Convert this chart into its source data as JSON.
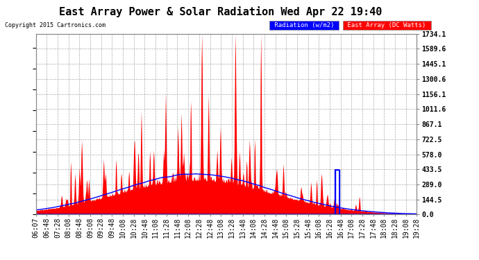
{
  "title": "East Array Power & Solar Radiation Wed Apr 22 19:40",
  "copyright": "Copyright 2015 Cartronics.com",
  "y_ticks": [
    0.0,
    144.5,
    289.0,
    433.5,
    578.0,
    722.5,
    867.1,
    1011.6,
    1156.1,
    1300.6,
    1445.1,
    1589.6,
    1734.1
  ],
  "y_max": 1734.1,
  "y_min": 0.0,
  "x_labels": [
    "06:07",
    "06:48",
    "07:28",
    "08:08",
    "08:48",
    "09:08",
    "09:28",
    "09:48",
    "10:08",
    "10:28",
    "10:48",
    "11:08",
    "11:28",
    "11:48",
    "12:08",
    "12:28",
    "12:48",
    "13:08",
    "13:28",
    "13:48",
    "14:08",
    "14:28",
    "14:48",
    "15:08",
    "15:28",
    "15:48",
    "16:08",
    "16:28",
    "16:48",
    "17:08",
    "17:28",
    "17:48",
    "18:08",
    "18:28",
    "19:08",
    "19:28"
  ],
  "bg_color": "#ffffff",
  "plot_bg": "#ffffff",
  "grid_color": "#aaaaaa",
  "red_fill": "#ff0000",
  "blue_line": "#0000ff",
  "title_color": "#000000",
  "axis_text_color": "#000000",
  "tick_label_color": "#000000",
  "title_fontsize": 11,
  "copyright_fontsize": 6,
  "tick_fontsize": 7,
  "legend_blue_bg": "#0000ff",
  "legend_red_bg": "#ff0000",
  "legend_text_color": "#ffffff"
}
